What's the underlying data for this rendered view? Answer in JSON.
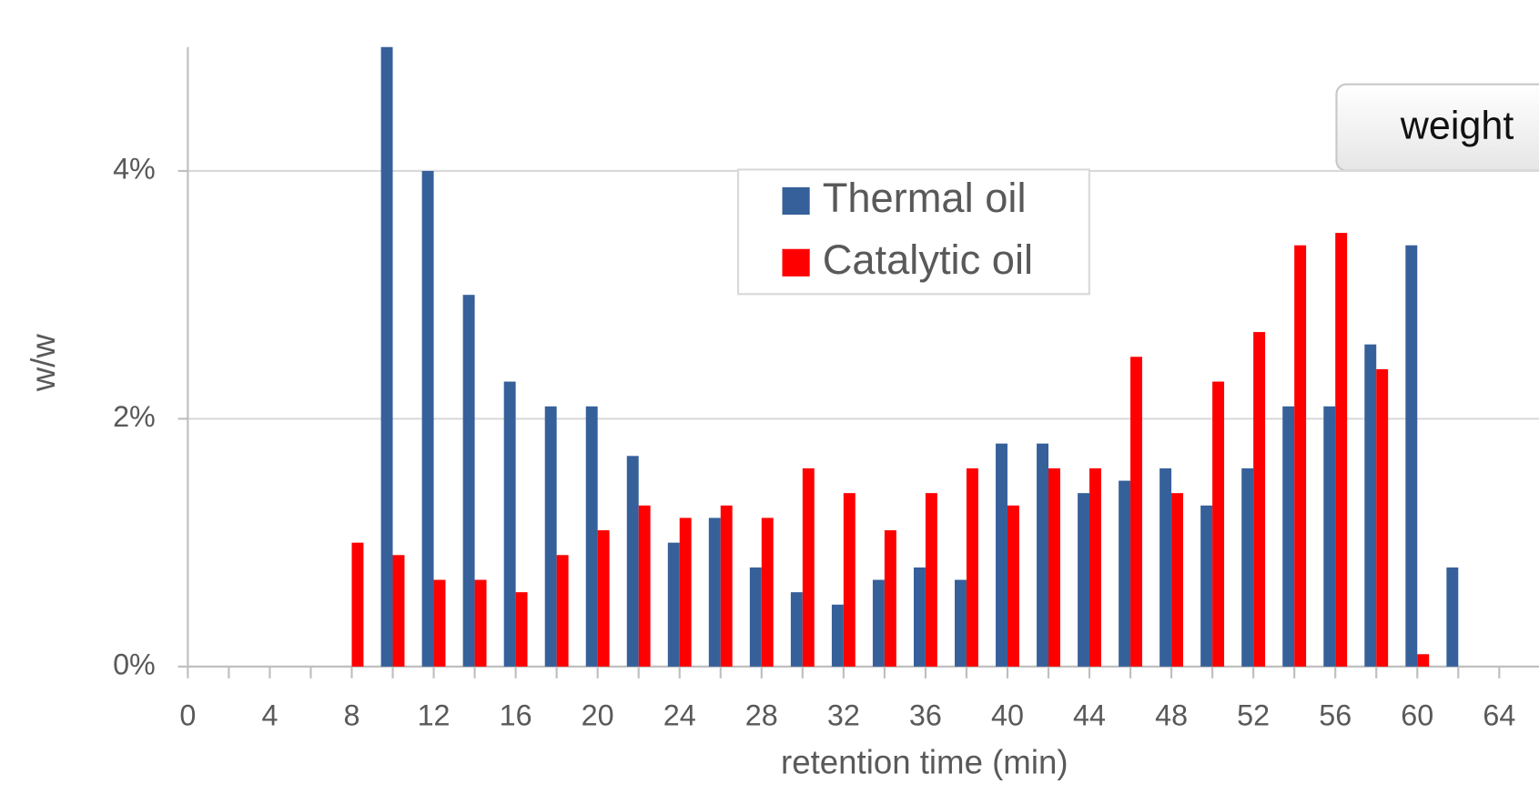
{
  "chart_data": {
    "type": "bar",
    "x_label": "retention time (min)",
    "y_label": "w/w",
    "x": [
      8,
      10,
      12,
      14,
      16,
      18,
      20,
      22,
      24,
      26,
      28,
      30,
      32,
      34,
      36,
      38,
      40,
      42,
      44,
      46,
      48,
      50,
      52,
      54,
      56,
      58,
      60,
      62
    ],
    "series": [
      {
        "name": "Thermal oil",
        "color": "#36609a",
        "values": [
          null,
          5.0,
          4.0,
          3.0,
          2.3,
          2.1,
          2.1,
          1.7,
          1.0,
          1.2,
          0.8,
          0.6,
          0.5,
          0.7,
          0.8,
          0.7,
          1.8,
          1.8,
          1.4,
          1.5,
          1.6,
          1.3,
          1.6,
          2.1,
          2.1,
          2.6,
          3.4,
          0.8
        ]
      },
      {
        "name": "Catalytic oil",
        "color": "#ff0000",
        "values": [
          1.0,
          0.9,
          0.7,
          0.7,
          0.6,
          0.9,
          1.1,
          1.3,
          1.2,
          1.3,
          1.2,
          1.6,
          1.4,
          1.1,
          1.4,
          1.6,
          1.3,
          1.6,
          1.6,
          2.5,
          1.4,
          2.3,
          2.7,
          3.4,
          3.5,
          2.4,
          0.1,
          null
        ]
      }
    ],
    "xlim": [
      0,
      66
    ],
    "xticks": [
      0,
      4,
      8,
      12,
      16,
      20,
      24,
      28,
      32,
      36,
      40,
      44,
      48,
      52,
      56,
      60,
      64
    ],
    "ylim": [
      0,
      5
    ],
    "yticks": [
      {
        "value": 0,
        "label": "0%"
      },
      {
        "value": 2,
        "label": "2%"
      },
      {
        "value": 4,
        "label": "4%"
      }
    ],
    "grid": true
  },
  "button": "weight"
}
